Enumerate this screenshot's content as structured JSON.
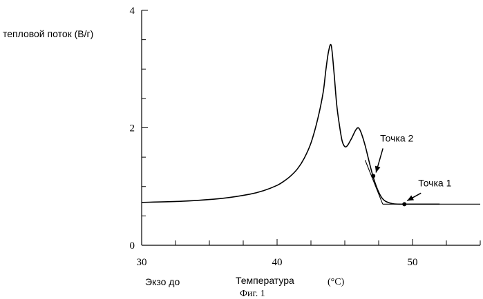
{
  "chart_data": {
    "type": "line",
    "ylabel": "тепловой поток  (В/г)",
    "xlabel": "Температура",
    "xunit": "(°C)",
    "note_left": "Экзо до",
    "caption": "Фиг. 1",
    "xlim": [
      30,
      55
    ],
    "ylim": [
      0,
      4
    ],
    "x_ticks": [
      30,
      40,
      50
    ],
    "y_ticks": [
      0,
      2,
      4
    ],
    "x": [
      30,
      33,
      36,
      38,
      39,
      40,
      40.5,
      41,
      41.5,
      42,
      42.5,
      43,
      43.4,
      43.6,
      43.8,
      44.0,
      44.2,
      44.4,
      44.6,
      44.8,
      45.0,
      45.2,
      45.5,
      45.8,
      46.0,
      46.2,
      46.5,
      46.8,
      47.1,
      47.4,
      47.7,
      48.0,
      48.5,
      49.0,
      49.5,
      50,
      52
    ],
    "values": [
      0.73,
      0.75,
      0.8,
      0.87,
      0.93,
      1.02,
      1.09,
      1.18,
      1.3,
      1.48,
      1.74,
      2.15,
      2.6,
      2.98,
      3.3,
      3.4,
      2.95,
      2.4,
      2.05,
      1.78,
      1.68,
      1.7,
      1.82,
      1.96,
      2.0,
      1.92,
      1.7,
      1.42,
      1.16,
      0.96,
      0.82,
      0.75,
      0.71,
      0.7,
      0.7,
      0.7,
      0.7
    ],
    "baseline": {
      "from": [
        47.8,
        0.7
      ],
      "to": [
        55,
        0.7
      ]
    },
    "tangent": {
      "from": [
        46.5,
        1.45
      ],
      "to": [
        47.8,
        0.7
      ]
    },
    "points": [
      {
        "label": "Точка  2",
        "x": 47.1,
        "y": 1.18
      },
      {
        "label": "Точка  1",
        "x": 49.4,
        "y": 0.7
      }
    ]
  }
}
